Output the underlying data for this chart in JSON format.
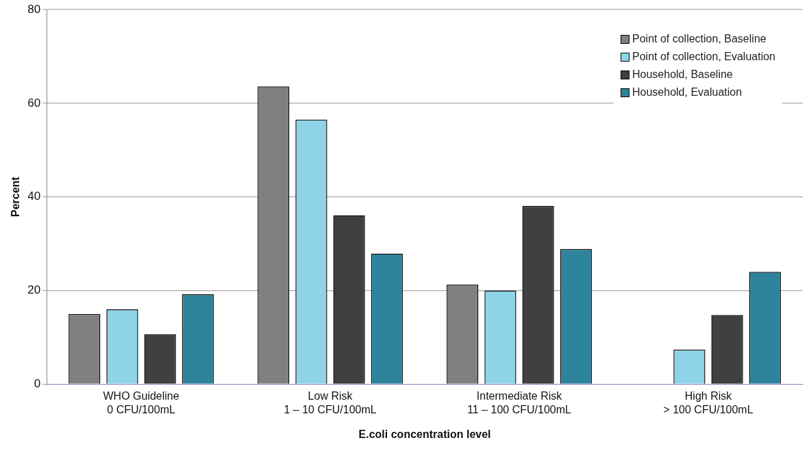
{
  "chart_data": {
    "type": "bar",
    "xlabel": "E.coli concentration level",
    "ylabel": "Percent",
    "categories": [
      "WHO Guideline\n0 CFU/100mL",
      "Low Risk\n1 – 10 CFU/100mL",
      "Intermediate Risk\n11 – 100 CFU/100mL",
      "High Risk\n> 100 CFU/100mL"
    ],
    "series": [
      {
        "name": "Point of collection, Baseline",
        "color": "#808080",
        "values": [
          15.0,
          63.6,
          21.3,
          0
        ]
      },
      {
        "name": "Point of collection, Evaluation",
        "color": "#8fd3e8",
        "values": [
          16.0,
          56.5,
          20.0,
          7.4
        ]
      },
      {
        "name": "Household, Baseline",
        "color": "#404040",
        "values": [
          10.7,
          36.1,
          38.1,
          14.8
        ]
      },
      {
        "name": "Household, Evaluation",
        "color": "#2e849c",
        "values": [
          19.2,
          27.9,
          28.9,
          24.0
        ]
      }
    ],
    "ylim": [
      0,
      80
    ],
    "yticks": [
      0,
      20,
      40,
      60,
      80
    ],
    "grid": "y",
    "legend": "top right"
  }
}
